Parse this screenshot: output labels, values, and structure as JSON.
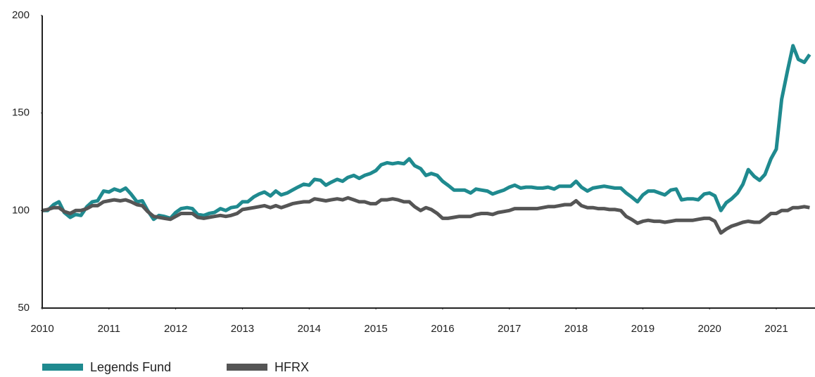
{
  "chart_data": {
    "type": "line",
    "x": [
      2010.0,
      2010.08,
      2010.17,
      2010.25,
      2010.33,
      2010.42,
      2010.5,
      2010.58,
      2010.67,
      2010.75,
      2010.83,
      2010.92,
      2011.0,
      2011.08,
      2011.17,
      2011.25,
      2011.33,
      2011.42,
      2011.5,
      2011.58,
      2011.67,
      2011.75,
      2011.83,
      2011.92,
      2012.0,
      2012.08,
      2012.17,
      2012.25,
      2012.33,
      2012.42,
      2012.5,
      2012.58,
      2012.67,
      2012.75,
      2012.83,
      2012.92,
      2013.0,
      2013.08,
      2013.17,
      2013.25,
      2013.33,
      2013.42,
      2013.5,
      2013.58,
      2013.67,
      2013.75,
      2013.83,
      2013.92,
      2014.0,
      2014.08,
      2014.17,
      2014.25,
      2014.33,
      2014.42,
      2014.5,
      2014.58,
      2014.67,
      2014.75,
      2014.83,
      2014.92,
      2015.0,
      2015.08,
      2015.17,
      2015.25,
      2015.33,
      2015.42,
      2015.5,
      2015.58,
      2015.67,
      2015.75,
      2015.83,
      2015.92,
      2016.0,
      2016.08,
      2016.17,
      2016.25,
      2016.33,
      2016.42,
      2016.5,
      2016.58,
      2016.67,
      2016.75,
      2016.83,
      2016.92,
      2017.0,
      2017.08,
      2017.17,
      2017.25,
      2017.33,
      2017.42,
      2017.5,
      2017.58,
      2017.67,
      2017.75,
      2017.83,
      2017.92,
      2018.0,
      2018.08,
      2018.17,
      2018.25,
      2018.33,
      2018.42,
      2018.5,
      2018.58,
      2018.67,
      2018.75,
      2018.83,
      2018.92,
      2019.0,
      2019.08,
      2019.17,
      2019.25,
      2019.33,
      2019.42,
      2019.5,
      2019.58,
      2019.67,
      2019.75,
      2019.83,
      2019.92,
      2020.0,
      2020.08,
      2020.17,
      2020.25,
      2020.33,
      2020.42,
      2020.5,
      2020.58,
      2020.67,
      2020.75,
      2020.83,
      2020.92,
      2021.0,
      2021.08,
      2021.17,
      2021.25,
      2021.33,
      2021.42,
      2021.5
    ],
    "series": [
      {
        "name": "Legends Fund",
        "color": "#1f8a8f",
        "values": [
          100,
          100,
          103,
          104.5,
          99,
          96.5,
          98,
          97.5,
          102,
          104.5,
          105,
          110,
          109.5,
          111,
          110,
          111.5,
          108.5,
          104.5,
          105,
          100,
          95.5,
          97.5,
          97,
          96,
          99,
          101,
          101.5,
          101,
          98,
          97.5,
          98.5,
          99,
          101,
          100,
          101.5,
          102,
          104.5,
          104.5,
          107,
          108.5,
          109.5,
          107.5,
          110,
          108,
          109,
          110.5,
          112,
          113.5,
          113,
          116,
          115.5,
          113,
          114.5,
          116,
          115,
          117,
          118,
          116.5,
          118,
          119,
          120.5,
          123.5,
          124.5,
          124,
          124.5,
          124,
          126.5,
          123,
          121.5,
          118,
          119,
          118,
          115,
          113,
          110.5,
          110.5,
          110.5,
          109,
          111,
          110.5,
          110,
          108.5,
          109.5,
          110.5,
          112,
          113,
          111.5,
          112,
          112,
          111.5,
          111.5,
          112,
          111,
          112.5,
          112.5,
          112.5,
          115,
          112,
          110,
          111.5,
          112,
          112.5,
          112,
          111.5,
          111.5,
          109,
          107,
          104.5,
          108,
          110,
          110,
          109,
          108,
          110.5,
          111,
          105.5,
          106,
          106,
          105.5,
          108.5,
          109,
          107.5,
          100,
          104,
          106,
          109,
          113.5,
          121,
          117.5,
          115.5,
          118.5,
          126.5,
          131.5,
          157,
          172,
          184.5,
          177.5,
          176,
          180
        ]
      },
      {
        "name": "HFRX",
        "color": "#555555",
        "values": [
          100,
          100.5,
          101.5,
          101.5,
          99.5,
          98.5,
          100,
          100,
          101,
          102.5,
          102.5,
          104.5,
          105,
          105.5,
          105,
          105.5,
          104.5,
          103,
          102.5,
          99.5,
          97,
          96.5,
          96,
          95.5,
          97,
          98.5,
          98.5,
          98.5,
          96.5,
          96,
          96.5,
          97,
          97.5,
          97,
          97.5,
          98.5,
          100.5,
          101,
          101.5,
          102,
          102.5,
          101.5,
          102.5,
          101.5,
          102.5,
          103.5,
          104,
          104.5,
          104.5,
          106,
          105.5,
          105,
          105.5,
          106,
          105.5,
          106.5,
          105.5,
          104.5,
          104.5,
          103.5,
          103.5,
          105.5,
          105.5,
          106,
          105.5,
          104.5,
          104.5,
          102,
          100,
          101.5,
          100.5,
          98.5,
          96,
          96,
          96.5,
          97,
          97,
          97,
          98,
          98.5,
          98.5,
          98,
          99,
          99.5,
          100,
          101,
          101,
          101,
          101,
          101,
          101.5,
          102,
          102,
          102.5,
          103,
          103,
          105,
          102.5,
          101.5,
          101.5,
          101,
          101,
          100.5,
          100.5,
          100,
          97,
          95.5,
          93.5,
          94.5,
          95,
          94.5,
          94.5,
          94,
          94.5,
          95,
          95,
          95,
          95,
          95.5,
          96,
          96,
          94.5,
          88.5,
          90.5,
          92,
          93,
          94,
          94.5,
          94,
          94,
          96,
          98.5,
          98.5,
          100,
          100,
          101.5,
          101.5,
          102,
          101.5
        ]
      }
    ],
    "xlim": [
      2010,
      2021.58
    ],
    "xticks": [
      2010,
      2011,
      2012,
      2013,
      2014,
      2015,
      2016,
      2017,
      2018,
      2019,
      2020,
      2021
    ],
    "ylim": [
      50,
      200
    ],
    "yticks": [
      50,
      100,
      150,
      200
    ],
    "legend": "bottom-left"
  }
}
